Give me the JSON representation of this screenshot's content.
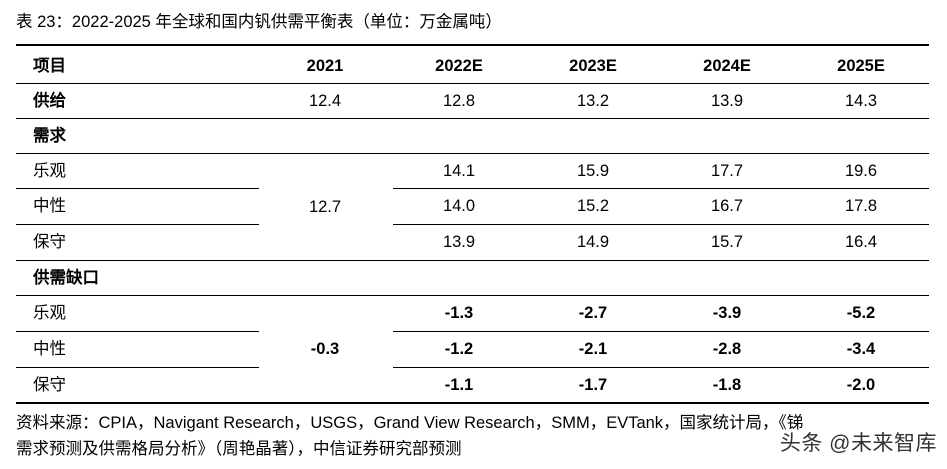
{
  "caption": "表 23：2022-2025 年全球和国内钒供需平衡表（单位：万金属吨）",
  "header": {
    "item": "项目",
    "years": [
      "2021",
      "2022E",
      "2023E",
      "2024E",
      "2025E"
    ]
  },
  "supply": {
    "label": "供给",
    "values": [
      "12.4",
      "12.8",
      "13.2",
      "13.9",
      "14.3"
    ]
  },
  "demand": {
    "label": "需求",
    "merged_2021": "12.7",
    "rows": [
      {
        "label": "乐观",
        "values": [
          "14.1",
          "15.9",
          "17.7",
          "19.6"
        ]
      },
      {
        "label": "中性",
        "values": [
          "14.0",
          "15.2",
          "16.7",
          "17.8"
        ]
      },
      {
        "label": "保守",
        "values": [
          "13.9",
          "14.9",
          "15.7",
          "16.4"
        ]
      }
    ]
  },
  "gap": {
    "label": "供需缺口",
    "merged_2021": "-0.3",
    "rows": [
      {
        "label": "乐观",
        "values": [
          "-1.3",
          "-2.7",
          "-3.9",
          "-5.2"
        ]
      },
      {
        "label": "中性",
        "values": [
          "-1.2",
          "-2.1",
          "-2.8",
          "-3.4"
        ]
      },
      {
        "label": "保守",
        "values": [
          "-1.1",
          "-1.7",
          "-1.8",
          "-2.0"
        ]
      }
    ]
  },
  "source_line1": "资料来源：CPIA，Navigant Research，USGS，Grand View Research，SMM，EVTank，国家统计局，《锑",
  "source_line2": "需求预测及供需格局分析》（周艳晶著），中信证券研究部预测",
  "watermark": "头条 @未来智库"
}
